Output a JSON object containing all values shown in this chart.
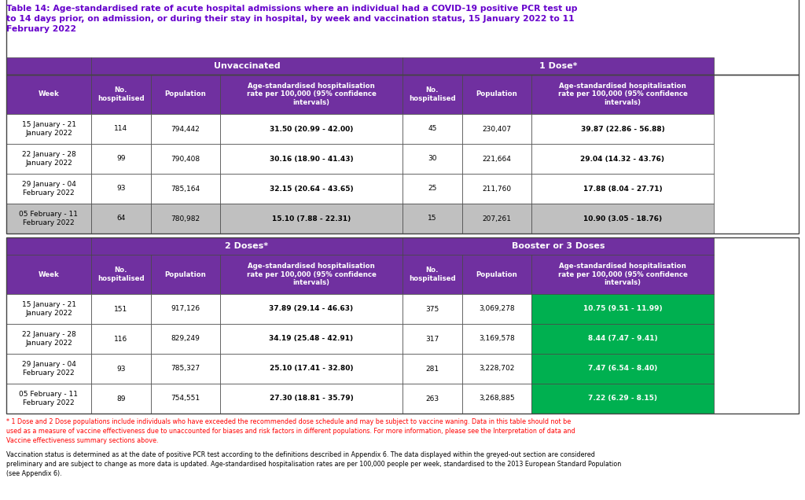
{
  "title_color": "#6600cc",
  "purple": "#7030a0",
  "green": "#00b050",
  "white": "#ffffff",
  "light_grey": "#c0c0c0",
  "black": "#000000",
  "weeks": [
    "15 January - 21\nJanuary 2022",
    "22 January - 28\nJanuary 2022",
    "29 January - 04\nFebruary 2022",
    "05 February - 11\nFebruary 2022"
  ],
  "top_table": {
    "unvaccinated": {
      "no_hosp": [
        "114",
        "99",
        "93",
        "64"
      ],
      "population": [
        "794,442",
        "790,408",
        "785,164",
        "780,982"
      ],
      "rate_bold": [
        "31.50",
        "30.16",
        "32.15",
        "15.10"
      ],
      "rate_rest": [
        " (20.99 - 42.00)",
        " (18.90 - 41.43)",
        " (20.64 - 43.65)",
        " (7.88 - 22.31)"
      ]
    },
    "one_dose": {
      "no_hosp": [
        "45",
        "30",
        "25",
        "15"
      ],
      "population": [
        "230,407",
        "221,664",
        "211,760",
        "207,261"
      ],
      "rate_bold": [
        "39.87",
        "29.04",
        "17.88",
        "10.90"
      ],
      "rate_rest": [
        " (22.86 - 56.88)",
        " (14.32 - 43.76)",
        " (8.04 - 27.71)",
        " (3.05 - 18.76)"
      ]
    }
  },
  "bottom_table": {
    "two_doses": {
      "no_hosp": [
        "151",
        "116",
        "93",
        "89"
      ],
      "population": [
        "917,126",
        "829,249",
        "785,327",
        "754,551"
      ],
      "rate_bold": [
        "37.89",
        "34.19",
        "25.10",
        "27.30"
      ],
      "rate_rest": [
        " (29.14 - 46.63)",
        " (25.48 - 42.91)",
        " (17.41 - 32.80)",
        " (18.81 - 35.79)"
      ]
    },
    "booster": {
      "no_hosp": [
        "375",
        "317",
        "281",
        "263"
      ],
      "population": [
        "3,069,278",
        "3,169,578",
        "3,228,702",
        "3,268,885"
      ],
      "rate_bold": [
        "10.75",
        "8.44",
        "7.47",
        "7.22"
      ],
      "rate_rest": [
        " (9.51 - 11.99)",
        " (7.47 - 9.41)",
        " (6.54 - 8.40)",
        " (6.29 - 8.15)"
      ]
    }
  }
}
